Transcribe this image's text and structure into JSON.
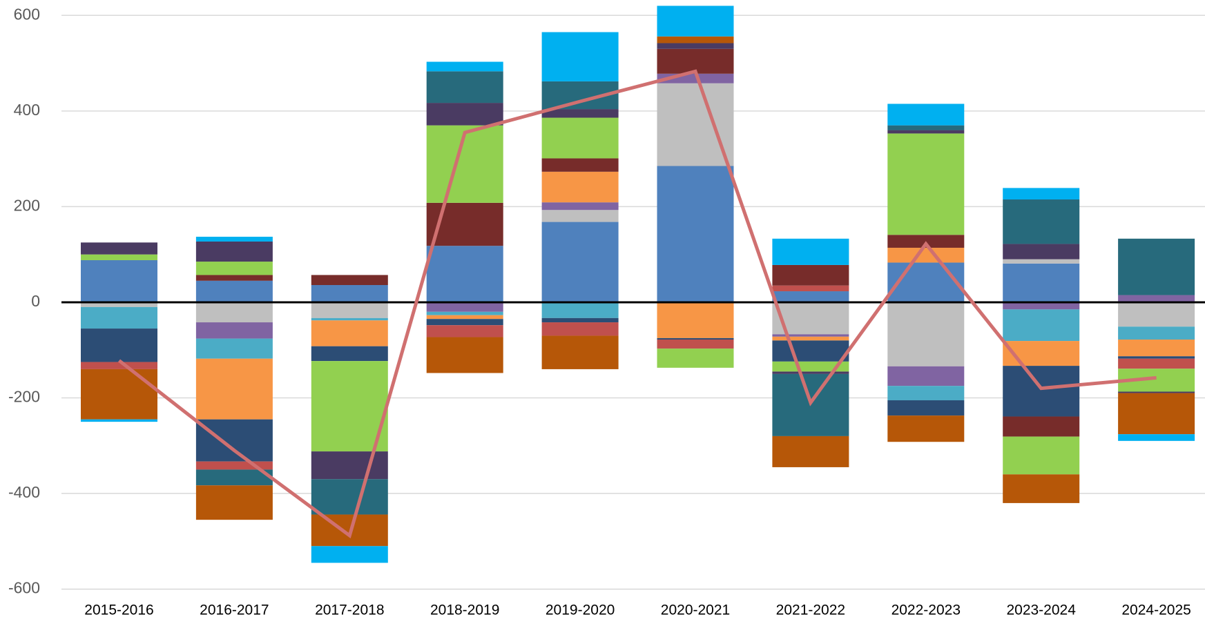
{
  "chart_data": {
    "type": "bar",
    "stacked": true,
    "categories": [
      "2015-2016",
      "2016-2017",
      "2017-2018",
      "2018-2019",
      "2019-2020",
      "2020-2021",
      "2021-2022",
      "2022-2023",
      "2023-2024",
      "2024-2025"
    ],
    "ylim": [
      -600,
      600
    ],
    "yticks": [
      -600,
      -400,
      -200,
      0,
      200,
      400,
      600
    ],
    "grid": true,
    "series": [
      {
        "color": "#4f81bd",
        "values": [
          88,
          45,
          36,
          118,
          168,
          285,
          23,
          83,
          81,
          0
        ]
      },
      {
        "color": "#bfbfbf",
        "values": [
          -10,
          -42,
          -33,
          0,
          25,
          173,
          -67,
          -134,
          9,
          -51
        ]
      },
      {
        "color": "#8064a2",
        "values": [
          0,
          -34,
          0,
          -20,
          16,
          20,
          -5,
          -41,
          -15,
          15
        ]
      },
      {
        "color": "#4bacc6",
        "values": [
          -45,
          -42,
          -5,
          -7,
          -33,
          0,
          0,
          -30,
          -66,
          -27
        ]
      },
      {
        "color": "#f79646",
        "values": [
          0,
          -127,
          -54,
          -8,
          64,
          -75,
          -8,
          31,
          -52,
          -35
        ]
      },
      {
        "color": "#2c4d75",
        "values": [
          -70,
          -88,
          -31,
          -13,
          -9,
          -3,
          -44,
          -32,
          -106,
          -5
        ]
      },
      {
        "color": "#c0504d",
        "values": [
          -15,
          -17,
          0,
          -25,
          -28,
          -19,
          12,
          0,
          0,
          -21
        ]
      },
      {
        "color": "#772c2a",
        "values": [
          0,
          12,
          21,
          90,
          28,
          52,
          43,
          27,
          -42,
          0
        ]
      },
      {
        "color": "#92d050",
        "values": [
          12,
          28,
          -189,
          162,
          85,
          -40,
          -21,
          212,
          -79,
          -48
        ]
      },
      {
        "color": "#4a3b62",
        "values": [
          25,
          42,
          -58,
          47,
          18,
          12,
          -5,
          7,
          32,
          -3
        ]
      },
      {
        "color": "#276a7c",
        "values": [
          0,
          -33,
          -74,
          66,
          58,
          0,
          -130,
          10,
          93,
          118
        ]
      },
      {
        "color": "#b65708",
        "values": [
          -105,
          -72,
          -66,
          -75,
          -70,
          14,
          -65,
          -55,
          -60,
          -86
        ]
      },
      {
        "color": "#00b0f0",
        "values": [
          -5,
          10,
          -35,
          20,
          103,
          64,
          55,
          45,
          24,
          -14
        ]
      },
      {
        "type": "line",
        "color": "#d07070",
        "values": [
          -122,
          -310,
          -488,
          355,
          420,
          483,
          -210,
          122,
          -180,
          -158
        ]
      }
    ]
  }
}
